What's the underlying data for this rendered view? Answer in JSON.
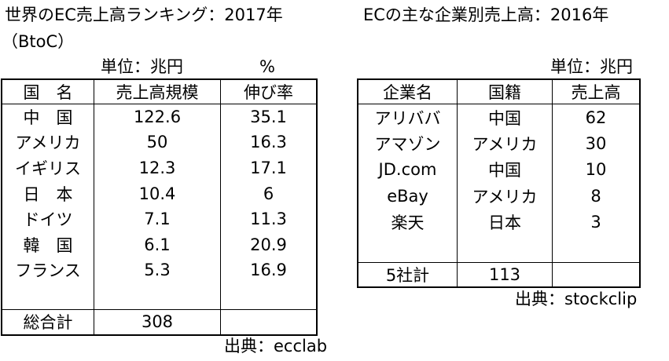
{
  "left": {
    "title": "世界のEC売上高ランキング：2017年",
    "subtitle": "（BtoC）",
    "unit_size": "単位：兆円",
    "unit_growth": "%",
    "header": [
      "国　名",
      "売上高規模",
      "伸び率"
    ],
    "rows": [
      [
        "中　国",
        122.6,
        35.1
      ],
      [
        "アメリカ",
        50,
        16.3
      ],
      [
        "イギリス",
        12.3,
        17.1
      ],
      [
        "日　本",
        10.4,
        6
      ],
      [
        "ドイツ",
        7.1,
        11.3
      ],
      [
        "韓　国",
        6.1,
        20.9
      ],
      [
        "フランス",
        5.3,
        16.9
      ]
    ],
    "total": [
      "総合計",
      308
    ],
    "source": "出典：ecclab"
  },
  "right": {
    "title": "ECの主な企業別売上高：2016年",
    "unit": "単位：兆円",
    "header": [
      "企業名",
      "国籍",
      "売上高"
    ],
    "rows": [
      [
        "アリババ",
        "中国",
        62
      ],
      [
        "アマゾン",
        "アメリカ",
        30
      ],
      [
        "JD.com",
        "中国",
        10
      ],
      [
        "eBay",
        "アメリカ",
        8
      ],
      [
        "楽天",
        "日本",
        3
      ]
    ],
    "total": [
      "5社計",
      113
    ],
    "source": "出典：stockclip"
  }
}
